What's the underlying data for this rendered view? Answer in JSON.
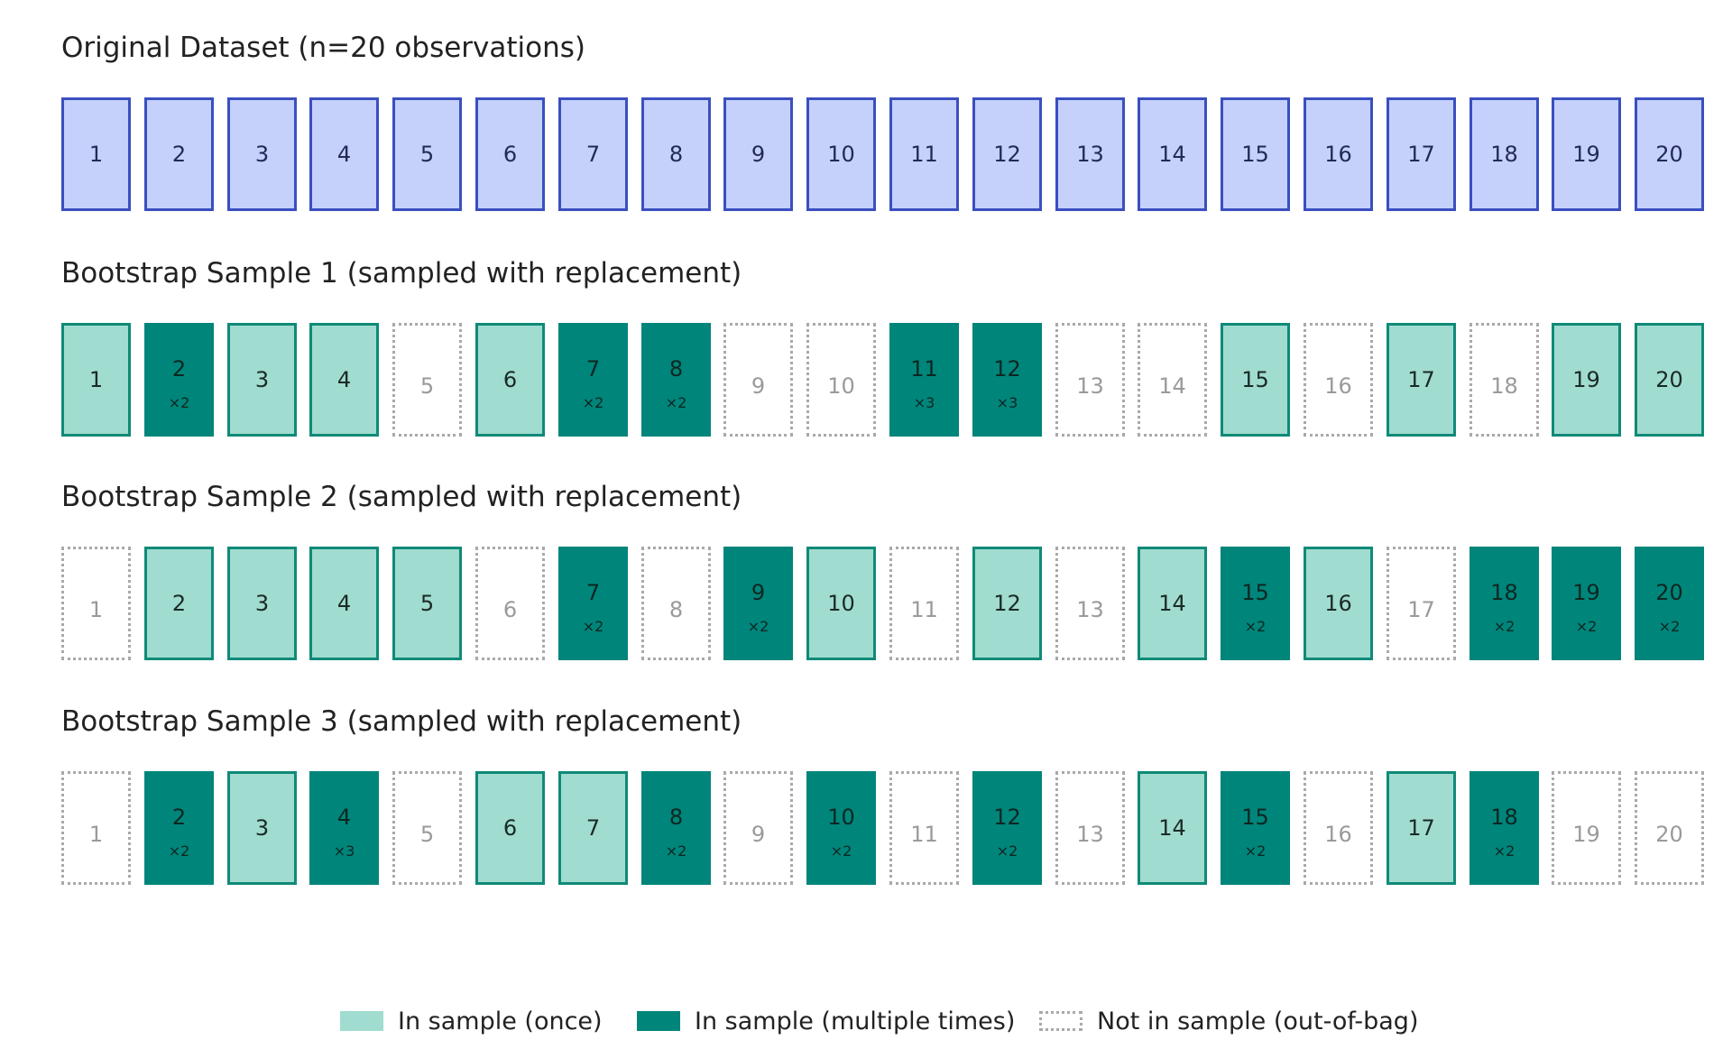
{
  "original": {
    "title": "Original Dataset (n=20 observations)",
    "items": [
      "1",
      "2",
      "3",
      "4",
      "5",
      "6",
      "7",
      "8",
      "9",
      "10",
      "11",
      "12",
      "13",
      "14",
      "15",
      "16",
      "17",
      "18",
      "19",
      "20"
    ]
  },
  "samples": [
    {
      "title": "Bootstrap Sample 1 (sampled with replacement)",
      "items": [
        {
          "label": "1",
          "state": "once",
          "mult": ""
        },
        {
          "label": "2",
          "state": "multi",
          "mult": "×2"
        },
        {
          "label": "3",
          "state": "once",
          "mult": ""
        },
        {
          "label": "4",
          "state": "once",
          "mult": ""
        },
        {
          "label": "5",
          "state": "oob",
          "mult": ""
        },
        {
          "label": "6",
          "state": "once",
          "mult": ""
        },
        {
          "label": "7",
          "state": "multi",
          "mult": "×2"
        },
        {
          "label": "8",
          "state": "multi",
          "mult": "×2"
        },
        {
          "label": "9",
          "state": "oob",
          "mult": ""
        },
        {
          "label": "10",
          "state": "oob",
          "mult": ""
        },
        {
          "label": "11",
          "state": "multi",
          "mult": "×3"
        },
        {
          "label": "12",
          "state": "multi",
          "mult": "×3"
        },
        {
          "label": "13",
          "state": "oob",
          "mult": ""
        },
        {
          "label": "14",
          "state": "oob",
          "mult": ""
        },
        {
          "label": "15",
          "state": "once",
          "mult": ""
        },
        {
          "label": "16",
          "state": "oob",
          "mult": ""
        },
        {
          "label": "17",
          "state": "once",
          "mult": ""
        },
        {
          "label": "18",
          "state": "oob",
          "mult": ""
        },
        {
          "label": "19",
          "state": "once",
          "mult": ""
        },
        {
          "label": "20",
          "state": "once",
          "mult": ""
        }
      ]
    },
    {
      "title": "Bootstrap Sample 2 (sampled with replacement)",
      "items": [
        {
          "label": "1",
          "state": "oob",
          "mult": ""
        },
        {
          "label": "2",
          "state": "once",
          "mult": ""
        },
        {
          "label": "3",
          "state": "once",
          "mult": ""
        },
        {
          "label": "4",
          "state": "once",
          "mult": ""
        },
        {
          "label": "5",
          "state": "once",
          "mult": ""
        },
        {
          "label": "6",
          "state": "oob",
          "mult": ""
        },
        {
          "label": "7",
          "state": "multi",
          "mult": "×2"
        },
        {
          "label": "8",
          "state": "oob",
          "mult": ""
        },
        {
          "label": "9",
          "state": "multi",
          "mult": "×2"
        },
        {
          "label": "10",
          "state": "once",
          "mult": ""
        },
        {
          "label": "11",
          "state": "oob",
          "mult": ""
        },
        {
          "label": "12",
          "state": "once",
          "mult": ""
        },
        {
          "label": "13",
          "state": "oob",
          "mult": ""
        },
        {
          "label": "14",
          "state": "once",
          "mult": ""
        },
        {
          "label": "15",
          "state": "multi",
          "mult": "×2"
        },
        {
          "label": "16",
          "state": "once",
          "mult": ""
        },
        {
          "label": "17",
          "state": "oob",
          "mult": ""
        },
        {
          "label": "18",
          "state": "multi",
          "mult": "×2"
        },
        {
          "label": "19",
          "state": "multi",
          "mult": "×2"
        },
        {
          "label": "20",
          "state": "multi",
          "mult": "×2"
        }
      ]
    },
    {
      "title": "Bootstrap Sample 3 (sampled with replacement)",
      "items": [
        {
          "label": "1",
          "state": "oob",
          "mult": ""
        },
        {
          "label": "2",
          "state": "multi",
          "mult": "×2"
        },
        {
          "label": "3",
          "state": "once",
          "mult": ""
        },
        {
          "label": "4",
          "state": "multi",
          "mult": "×3"
        },
        {
          "label": "5",
          "state": "oob",
          "mult": ""
        },
        {
          "label": "6",
          "state": "once",
          "mult": ""
        },
        {
          "label": "7",
          "state": "once",
          "mult": ""
        },
        {
          "label": "8",
          "state": "multi",
          "mult": "×2"
        },
        {
          "label": "9",
          "state": "oob",
          "mult": ""
        },
        {
          "label": "10",
          "state": "multi",
          "mult": "×2"
        },
        {
          "label": "11",
          "state": "oob",
          "mult": ""
        },
        {
          "label": "12",
          "state": "multi",
          "mult": "×2"
        },
        {
          "label": "13",
          "state": "oob",
          "mult": ""
        },
        {
          "label": "14",
          "state": "once",
          "mult": ""
        },
        {
          "label": "15",
          "state": "multi",
          "mult": "×2"
        },
        {
          "label": "16",
          "state": "oob",
          "mult": ""
        },
        {
          "label": "17",
          "state": "once",
          "mult": ""
        },
        {
          "label": "18",
          "state": "multi",
          "mult": "×2"
        },
        {
          "label": "19",
          "state": "oob",
          "mult": ""
        },
        {
          "label": "20",
          "state": "oob",
          "mult": ""
        }
      ]
    }
  ],
  "legend": {
    "once": "In sample (once)",
    "multi": "In sample (multiple times)",
    "oob": "Not in sample (out-of-bag)"
  },
  "colors": {
    "original_fill": "#c5d0fb",
    "original_border": "#3a4fc0",
    "once_fill": "#a0dccf",
    "once_border": "#0f8a78",
    "multi_fill": "#00857a",
    "oob_border": "#a9a9a9"
  }
}
